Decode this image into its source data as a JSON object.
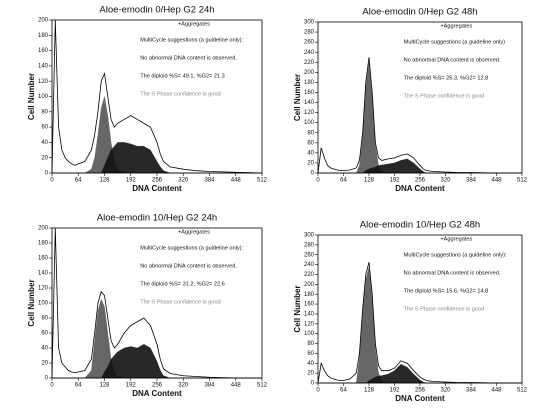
{
  "chart_data": [
    {
      "type": "area",
      "title": "Aloe-emodin 0/Hep G2 24h",
      "x_label": "DNA Content",
      "y_label": "Cell Number",
      "x": [
        0,
        8,
        16,
        24,
        32,
        40,
        48,
        56,
        64,
        80,
        96,
        104,
        112,
        120,
        128,
        136,
        144,
        152,
        160,
        176,
        192,
        208,
        224,
        240,
        256,
        264,
        272,
        288,
        320,
        352,
        384,
        448,
        512
      ],
      "series": [
        {
          "color": "#555555",
          "fill": true,
          "values": [
            0,
            0,
            0,
            0,
            0,
            0,
            0,
            0,
            0,
            0,
            5,
            20,
            50,
            85,
            100,
            75,
            40,
            15,
            5,
            0,
            0,
            0,
            0,
            0,
            0,
            0,
            0,
            0,
            0,
            0,
            0,
            0,
            0
          ]
        },
        {
          "color": "#111111",
          "fill": true,
          "values": [
            0,
            0,
            0,
            0,
            0,
            0,
            0,
            0,
            0,
            0,
            0,
            0,
            0,
            0,
            10,
            20,
            30,
            35,
            40,
            40,
            38,
            35,
            35,
            30,
            15,
            8,
            3,
            0,
            0,
            0,
            0,
            0,
            0
          ]
        },
        {
          "color": "#000000",
          "fill": false,
          "values": [
            0,
            200,
            60,
            30,
            20,
            15,
            12,
            10,
            12,
            15,
            30,
            50,
            80,
            120,
            130,
            100,
            70,
            60,
            65,
            70,
            75,
            70,
            65,
            60,
            40,
            25,
            15,
            8,
            5,
            3,
            2,
            1,
            0
          ]
        }
      ],
      "xlim": [
        0,
        512
      ],
      "xticks": [
        0,
        64,
        128,
        192,
        256,
        320,
        384,
        448,
        512
      ],
      "ylim": [
        0,
        200
      ],
      "yticks": [
        0,
        20,
        40,
        60,
        80,
        100,
        120,
        140,
        160,
        180,
        200
      ],
      "annotations": [
        "+Aggregates",
        "MultiCycle suggestions (a guideline only):",
        "No abnormal DNA content is observed.",
        "The diploid %S= 49.1, %G2= 21.3",
        "The S Phase confidence is good"
      ]
    },
    {
      "type": "area",
      "title": "Aloe-emodin 0/Hep G2 48h",
      "x_label": "DNA Content",
      "y_label": "Cell Number",
      "x": [
        0,
        8,
        16,
        24,
        32,
        40,
        48,
        56,
        64,
        80,
        96,
        104,
        112,
        120,
        128,
        136,
        144,
        152,
        160,
        176,
        192,
        208,
        224,
        240,
        256,
        264,
        272,
        288,
        320,
        352,
        384,
        448,
        512
      ],
      "series": [
        {
          "color": "#555555",
          "fill": true,
          "values": [
            0,
            0,
            0,
            0,
            0,
            0,
            0,
            0,
            0,
            0,
            0,
            15,
            70,
            170,
            220,
            150,
            55,
            15,
            3,
            0,
            0,
            0,
            0,
            0,
            0,
            0,
            0,
            0,
            0,
            0,
            0,
            0,
            0
          ]
        },
        {
          "color": "#111111",
          "fill": true,
          "values": [
            0,
            0,
            0,
            0,
            0,
            0,
            0,
            0,
            0,
            0,
            0,
            0,
            0,
            5,
            8,
            10,
            12,
            15,
            16,
            18,
            20,
            25,
            28,
            20,
            8,
            3,
            0,
            0,
            0,
            0,
            0,
            0,
            0
          ]
        },
        {
          "color": "#000000",
          "fill": false,
          "values": [
            0,
            50,
            30,
            15,
            10,
            8,
            6,
            5,
            5,
            6,
            10,
            25,
            80,
            180,
            230,
            160,
            60,
            30,
            25,
            28,
            30,
            35,
            38,
            30,
            15,
            8,
            5,
            3,
            2,
            1,
            1,
            0,
            0
          ]
        }
      ],
      "xlim": [
        0,
        512
      ],
      "xticks": [
        0,
        64,
        128,
        192,
        256,
        320,
        384,
        448,
        512
      ],
      "ylim": [
        0,
        300
      ],
      "yticks": [
        0,
        20,
        40,
        60,
        80,
        100,
        120,
        140,
        160,
        180,
        200,
        220,
        240,
        260,
        280,
        300
      ],
      "annotations": [
        "+Aggregates",
        "MultiCycle suggestions (a guideline only)",
        "No abnormal DNA content is observed.",
        "The diploid %S= 26.3, %G2= 12.8",
        "The S Phase confidence is good"
      ]
    },
    {
      "type": "area",
      "title": "Aloe-emodin 10/Hep G2 24h",
      "x_label": "DNA Content",
      "y_label": "Cell Number",
      "x": [
        0,
        8,
        16,
        24,
        32,
        40,
        48,
        56,
        64,
        80,
        96,
        104,
        112,
        120,
        128,
        136,
        144,
        152,
        160,
        176,
        192,
        208,
        224,
        240,
        256,
        264,
        272,
        288,
        320,
        352,
        384,
        448,
        512
      ],
      "series": [
        {
          "color": "#555555",
          "fill": true,
          "values": [
            0,
            0,
            0,
            0,
            0,
            0,
            0,
            0,
            0,
            0,
            10,
            50,
            90,
            105,
            95,
            60,
            25,
            8,
            2,
            0,
            0,
            0,
            0,
            0,
            0,
            0,
            0,
            0,
            0,
            0,
            0,
            0,
            0
          ]
        },
        {
          "color": "#111111",
          "fill": true,
          "values": [
            0,
            0,
            0,
            0,
            0,
            0,
            0,
            0,
            0,
            0,
            0,
            0,
            0,
            0,
            8,
            15,
            25,
            30,
            35,
            40,
            42,
            40,
            45,
            40,
            22,
            10,
            3,
            0,
            0,
            0,
            0,
            0,
            0
          ]
        },
        {
          "color": "#000000",
          "fill": false,
          "values": [
            0,
            200,
            40,
            20,
            15,
            10,
            8,
            7,
            8,
            10,
            25,
            60,
            100,
            115,
            110,
            80,
            50,
            40,
            45,
            60,
            70,
            75,
            80,
            70,
            45,
            25,
            12,
            6,
            3,
            2,
            1,
            0,
            0
          ]
        }
      ],
      "xlim": [
        0,
        512
      ],
      "xticks": [
        0,
        64,
        128,
        192,
        256,
        320,
        384,
        448,
        512
      ],
      "ylim": [
        0,
        200
      ],
      "yticks": [
        0,
        20,
        40,
        60,
        80,
        100,
        120,
        140,
        160,
        180,
        200
      ],
      "annotations": [
        "+Aggregates",
        "MultiCycle suggestions (a guideline only):",
        "No abnormal DNA content is observed.",
        "The diploid %S= 31.2, %G2= 22.6",
        "The S Phase confidence is good"
      ]
    },
    {
      "type": "area",
      "title": "Aloe-emodin 10/Hep G2 48h",
      "x_label": "DNA Content",
      "y_label": "Cell Number",
      "x": [
        0,
        8,
        16,
        24,
        32,
        40,
        48,
        56,
        64,
        80,
        96,
        104,
        112,
        120,
        128,
        136,
        144,
        152,
        160,
        176,
        192,
        208,
        224,
        240,
        256,
        264,
        272,
        288,
        320,
        352,
        384,
        448,
        512
      ],
      "series": [
        {
          "color": "#555555",
          "fill": true,
          "values": [
            0,
            0,
            0,
            0,
            0,
            0,
            0,
            0,
            0,
            0,
            0,
            50,
            140,
            210,
            235,
            170,
            70,
            20,
            5,
            0,
            0,
            0,
            0,
            0,
            0,
            0,
            0,
            0,
            0,
            0,
            0,
            0,
            0
          ]
        },
        {
          "color": "#111111",
          "fill": true,
          "values": [
            0,
            0,
            0,
            0,
            0,
            0,
            0,
            0,
            0,
            0,
            0,
            0,
            0,
            0,
            5,
            8,
            12,
            14,
            15,
            18,
            25,
            38,
            32,
            18,
            6,
            2,
            0,
            0,
            0,
            0,
            0,
            0,
            0
          ]
        },
        {
          "color": "#000000",
          "fill": false,
          "values": [
            0,
            40,
            25,
            15,
            10,
            8,
            6,
            5,
            5,
            8,
            20,
            60,
            150,
            220,
            245,
            180,
            80,
            35,
            25,
            25,
            30,
            45,
            40,
            25,
            12,
            8,
            5,
            3,
            2,
            1,
            1,
            0,
            0
          ]
        }
      ],
      "xlim": [
        0,
        512
      ],
      "xticks": [
        0,
        64,
        128,
        192,
        256,
        320,
        384,
        448,
        512
      ],
      "ylim": [
        0,
        300
      ],
      "yticks": [
        0,
        20,
        40,
        60,
        80,
        100,
        120,
        140,
        160,
        180,
        200,
        220,
        240,
        260,
        280,
        300
      ],
      "annotations": [
        "+Aggregates",
        "MultiCycle suggestions (a guideline only):",
        "No abnormal DNA content is observed.",
        "The diploid %S= 15.6, %G2= 14.8",
        "The S Phase confidence is good"
      ]
    }
  ]
}
